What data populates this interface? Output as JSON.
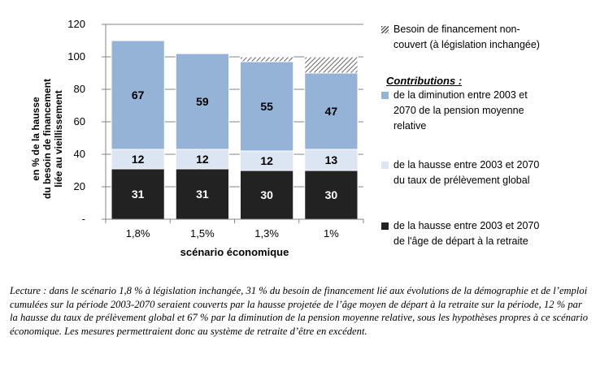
{
  "chart_data": {
    "type": "bar",
    "stacked": true,
    "categories": [
      "1,8%",
      "1,5%",
      "1,3%",
      "1%"
    ],
    "series": [
      {
        "name": "de la hausse entre 2003 et 2070 de l'âge de départ à la retraite",
        "color": "#222222",
        "label_color": "#ffffff",
        "values": [
          31,
          31,
          30,
          30
        ]
      },
      {
        "name": "de la hausse entre 2003 et 2070 du taux de prélèvement global",
        "color": "#dce6f2",
        "label_color": "#000000",
        "values": [
          12,
          12,
          12,
          13
        ]
      },
      {
        "name": "de la diminution entre 2003 et 2070 de la pension moyenne relative",
        "color": "#95b3d7",
        "label_color": "#000000",
        "values": [
          67,
          59,
          55,
          47
        ]
      },
      {
        "name": "Besoin de financement non-couvert (à législation inchangée)",
        "color": "hatch",
        "values": [
          0,
          0,
          3,
          10
        ],
        "show_labels": false
      }
    ],
    "xlabel": "scénario économique",
    "ylabel": [
      "en % de la hausse",
      "du besoin de financement",
      "liée au vieillissement"
    ],
    "ylim": [
      0,
      120
    ],
    "yticks": [
      "-",
      "20",
      "40",
      "60",
      "80",
      "100",
      "120"
    ],
    "grid": true,
    "legend_position": "right"
  },
  "legend": {
    "uncovered": [
      "Besoin de financement non-",
      "couvert (à législation inchangée)"
    ],
    "title": "Contributions  :",
    "pension": [
      "de la diminution entre 2003 et",
      "2070 de la pension moyenne",
      "relative"
    ],
    "tax": [
      "de la hausse entre 2003 et 2070",
      "du taux de prélèvement global"
    ],
    "age": [
      "de la hausse entre 2003 et 2070",
      "de l'âge de départ à la retraite"
    ]
  },
  "caption": "Lecture : dans le scénario 1,8 % à législation inchangée, 31 % du besoin de financement lié aux évolutions de la démographie et de l’emploi cumulées sur la période 2003-2070 seraient couverts par la hausse projetée de l’âge moyen de départ à la retraite sur la période, 12 % par la hausse du taux de prélèvement global et 67 % par la diminution de la pension moyenne relative, sous les hypothèses propres à ce scénario économique. Les mesures permettraient donc au système de retraite d’être en excédent."
}
